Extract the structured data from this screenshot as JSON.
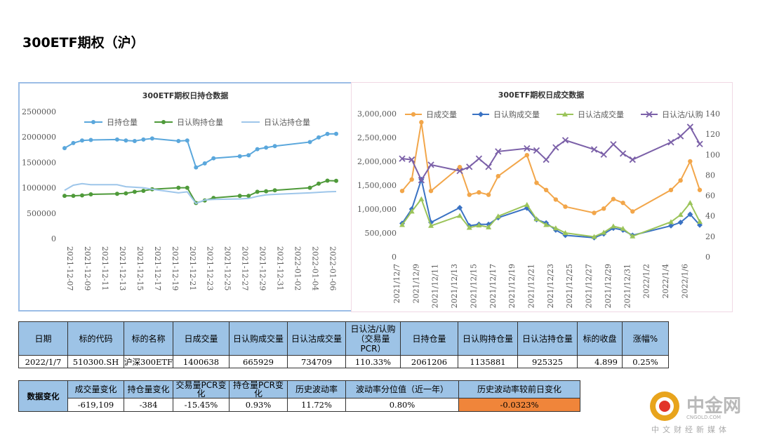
{
  "page_title": "300ETF期权（沪）",
  "colors": {
    "hold": "#5aa7dc",
    "call_hold": "#4f9a3a",
    "put_hold": "#9ec6ea",
    "volume": "#f2a64a",
    "call_vol": "#3a72c3",
    "put_vol": "#9bc45a",
    "pcr": "#7b60a8",
    "table_header": "#9dc3e6",
    "highlight": "#f0853a"
  },
  "chart_data": [
    {
      "type": "line",
      "title": "300ETF期权日持仓数据",
      "x_ticks": [
        "2021-12-07",
        "2021-12-09",
        "2021-12-11",
        "2021-12-13",
        "2021-12-15",
        "2021-12-17",
        "2021-12-19",
        "2021-12-21",
        "2021-12-23",
        "2021-12-25",
        "2021-12-27",
        "2021-12-29",
        "2021-12-31",
        "2022-01-02",
        "2022-01-04",
        "2022-01-06"
      ],
      "ylim": [
        0,
        2500000
      ],
      "y_ticks": [
        "0",
        "500000",
        "1000000",
        "1500000",
        "2000000",
        "2500000"
      ],
      "legend": "top",
      "series": [
        {
          "name": "日持仓量",
          "markers": true,
          "x": [
            "2021-12-07",
            "2021-12-08",
            "2021-12-09",
            "2021-12-10",
            "2021-12-13",
            "2021-12-14",
            "2021-12-15",
            "2021-12-16",
            "2021-12-17",
            "2021-12-20",
            "2021-12-21",
            "2021-12-22",
            "2021-12-23",
            "2021-12-24",
            "2021-12-27",
            "2021-12-28",
            "2021-12-29",
            "2021-12-30",
            "2021-12-31",
            "2022-01-04",
            "2022-01-05",
            "2022-01-06",
            "2022-01-07"
          ],
          "values": [
            1780000,
            1880000,
            1930000,
            1940000,
            1950000,
            1930000,
            1920000,
            1950000,
            1970000,
            1920000,
            1930000,
            1400000,
            1480000,
            1580000,
            1620000,
            1640000,
            1760000,
            1790000,
            1820000,
            1900000,
            1990000,
            2060000,
            2061206
          ]
        },
        {
          "name": "日认购持仓量",
          "markers": true,
          "x": [
            "2021-12-07",
            "2021-12-08",
            "2021-12-09",
            "2021-12-10",
            "2021-12-13",
            "2021-12-14",
            "2021-12-15",
            "2021-12-16",
            "2021-12-17",
            "2021-12-20",
            "2021-12-21",
            "2021-12-22",
            "2021-12-23",
            "2021-12-24",
            "2021-12-27",
            "2021-12-28",
            "2021-12-29",
            "2021-12-30",
            "2021-12-31",
            "2022-01-04",
            "2022-01-05",
            "2022-01-06",
            "2022-01-07"
          ],
          "values": [
            840000,
            840000,
            850000,
            870000,
            880000,
            890000,
            920000,
            940000,
            970000,
            1000000,
            1000000,
            700000,
            750000,
            800000,
            840000,
            840000,
            920000,
            930000,
            950000,
            1000000,
            1080000,
            1140000,
            1135881
          ]
        },
        {
          "name": "日认沽持仓量",
          "markers": false,
          "x": [
            "2021-12-07",
            "2021-12-08",
            "2021-12-09",
            "2021-12-10",
            "2021-12-13",
            "2021-12-14",
            "2021-12-15",
            "2021-12-16",
            "2021-12-17",
            "2021-12-20",
            "2021-12-21",
            "2021-12-22",
            "2021-12-23",
            "2021-12-24",
            "2021-12-27",
            "2021-12-28",
            "2021-12-29",
            "2021-12-30",
            "2021-12-31",
            "2022-01-04",
            "2022-01-05",
            "2022-01-06",
            "2022-01-07"
          ],
          "values": [
            950000,
            1050000,
            1080000,
            1060000,
            1060000,
            1020000,
            1010000,
            1000000,
            970000,
            900000,
            920000,
            690000,
            760000,
            770000,
            780000,
            790000,
            830000,
            860000,
            870000,
            900000,
            910000,
            920000,
            925325
          ]
        }
      ]
    },
    {
      "type": "line",
      "title": "300ETF期权日成交数据",
      "x_ticks": [
        "2021/12/7",
        "2021/12/9",
        "2021/12/11",
        "2021/12/13",
        "2021/12/15",
        "2021/12/17",
        "2021/12/19",
        "2021/12/21",
        "2021/12/23",
        "2021/12/25",
        "2021/12/27",
        "2021/12/29",
        "2021/12/31",
        "2022/1/2",
        "2022/1/4",
        "2022/1/6"
      ],
      "ylim": [
        0,
        3000000
      ],
      "y_ticks": [
        "0",
        "500,000",
        "1,000,000",
        "1,500,000",
        "2,000,000",
        "2,500,000",
        "3,000,000"
      ],
      "y2lim": [
        0,
        140
      ],
      "y2_ticks": [
        "0",
        "20",
        "40",
        "60",
        "80",
        "100",
        "120",
        "140"
      ],
      "legend": "top",
      "series": [
        {
          "name": "日成交量",
          "axis": "left",
          "marker": "circle",
          "x": [
            "2021-12-07",
            "2021-12-08",
            "2021-12-09",
            "2021-12-10",
            "2021-12-13",
            "2021-12-14",
            "2021-12-15",
            "2021-12-16",
            "2021-12-17",
            "2021-12-20",
            "2021-12-21",
            "2021-12-22",
            "2021-12-23",
            "2021-12-24",
            "2021-12-27",
            "2021-12-28",
            "2021-12-29",
            "2021-12-30",
            "2021-12-31",
            "2022-01-04",
            "2022-01-05",
            "2022-01-06",
            "2022-01-07"
          ],
          "values": [
            1380000,
            1620000,
            2820000,
            1380000,
            1880000,
            1300000,
            1350000,
            1300000,
            1690000,
            2130000,
            1550000,
            1400000,
            1200000,
            1050000,
            920000,
            1010000,
            1210000,
            1130000,
            950000,
            1400000,
            1600000,
            2000000,
            1400638
          ]
        },
        {
          "name": "日认购成交量",
          "axis": "left",
          "marker": "diamond",
          "x": [
            "2021-12-07",
            "2021-12-08",
            "2021-12-09",
            "2021-12-10",
            "2021-12-13",
            "2021-12-14",
            "2021-12-15",
            "2021-12-16",
            "2021-12-17",
            "2021-12-20",
            "2021-12-21",
            "2021-12-22",
            "2021-12-23",
            "2021-12-24",
            "2021-12-27",
            "2021-12-28",
            "2021-12-29",
            "2021-12-30",
            "2021-12-31",
            "2022-01-04",
            "2022-01-05",
            "2022-01-06",
            "2022-01-07"
          ],
          "values": [
            700000,
            1000000,
            1620000,
            720000,
            1030000,
            650000,
            680000,
            680000,
            820000,
            1020000,
            780000,
            710000,
            560000,
            450000,
            400000,
            480000,
            600000,
            560000,
            450000,
            650000,
            720000,
            890000,
            665929
          ]
        },
        {
          "name": "日认沽成交量",
          "axis": "left",
          "marker": "triangle",
          "x": [
            "2021-12-07",
            "2021-12-08",
            "2021-12-09",
            "2021-12-10",
            "2021-12-13",
            "2021-12-14",
            "2021-12-15",
            "2021-12-16",
            "2021-12-17",
            "2021-12-20",
            "2021-12-21",
            "2021-12-22",
            "2021-12-23",
            "2021-12-24",
            "2021-12-27",
            "2021-12-28",
            "2021-12-29",
            "2021-12-30",
            "2021-12-31",
            "2022-01-04",
            "2022-01-05",
            "2022-01-06",
            "2022-01-07"
          ],
          "values": [
            670000,
            950000,
            1210000,
            650000,
            860000,
            610000,
            660000,
            620000,
            850000,
            1090000,
            790000,
            670000,
            600000,
            500000,
            420000,
            510000,
            640000,
            590000,
            430000,
            730000,
            880000,
            1130000,
            734709
          ]
        },
        {
          "name": "日认沽/认购",
          "axis": "right",
          "marker": "x",
          "x": [
            "2021-12-07",
            "2021-12-08",
            "2021-12-09",
            "2021-12-10",
            "2021-12-13",
            "2021-12-14",
            "2021-12-15",
            "2021-12-16",
            "2021-12-17",
            "2021-12-20",
            "2021-12-21",
            "2021-12-22",
            "2021-12-23",
            "2021-12-24",
            "2021-12-27",
            "2021-12-28",
            "2021-12-29",
            "2021-12-30",
            "2021-12-31",
            "2022-01-04",
            "2022-01-05",
            "2022-01-06",
            "2022-01-07"
          ],
          "values": [
            96,
            95,
            75,
            90,
            84,
            88,
            96,
            88,
            103,
            106,
            104,
            95,
            107,
            114,
            105,
            100,
            110,
            101,
            95,
            112,
            118,
            127,
            110.33
          ]
        }
      ]
    }
  ],
  "table1": {
    "headers": [
      "日期",
      "标的代码",
      "标的名称",
      "日成交量",
      "日认购成交量",
      "日认沽成交量",
      "日认沽/认购（交易量PCR）",
      "日持仓量",
      "日认购持仓量",
      "日认沽持仓量",
      "标的收盘",
      "涨幅%"
    ],
    "row": [
      "2022/1/7",
      "510300.SH",
      "沪深300ETF",
      "1400638",
      "665929",
      "734709",
      "110.33%",
      "2061206",
      "1135881",
      "925325",
      "4.899",
      "0.25%"
    ]
  },
  "table2": {
    "key_label": "数据变化",
    "headers": [
      "成交量变化",
      "持仓量变化",
      "交易量PCR变化",
      "持仓量PCR变化",
      "历史波动率",
      "波动率分位值（近一年）",
      "历史波动率较前日变化"
    ],
    "row": [
      "-619,109",
      "-384",
      "-15.45%",
      "0.93%",
      "11.72%",
      "0.80%",
      "-0.0323%"
    ]
  },
  "logo": {
    "name": "中金网",
    "url": "CNGOLD.COM",
    "sub": "中文财经新媒体"
  }
}
